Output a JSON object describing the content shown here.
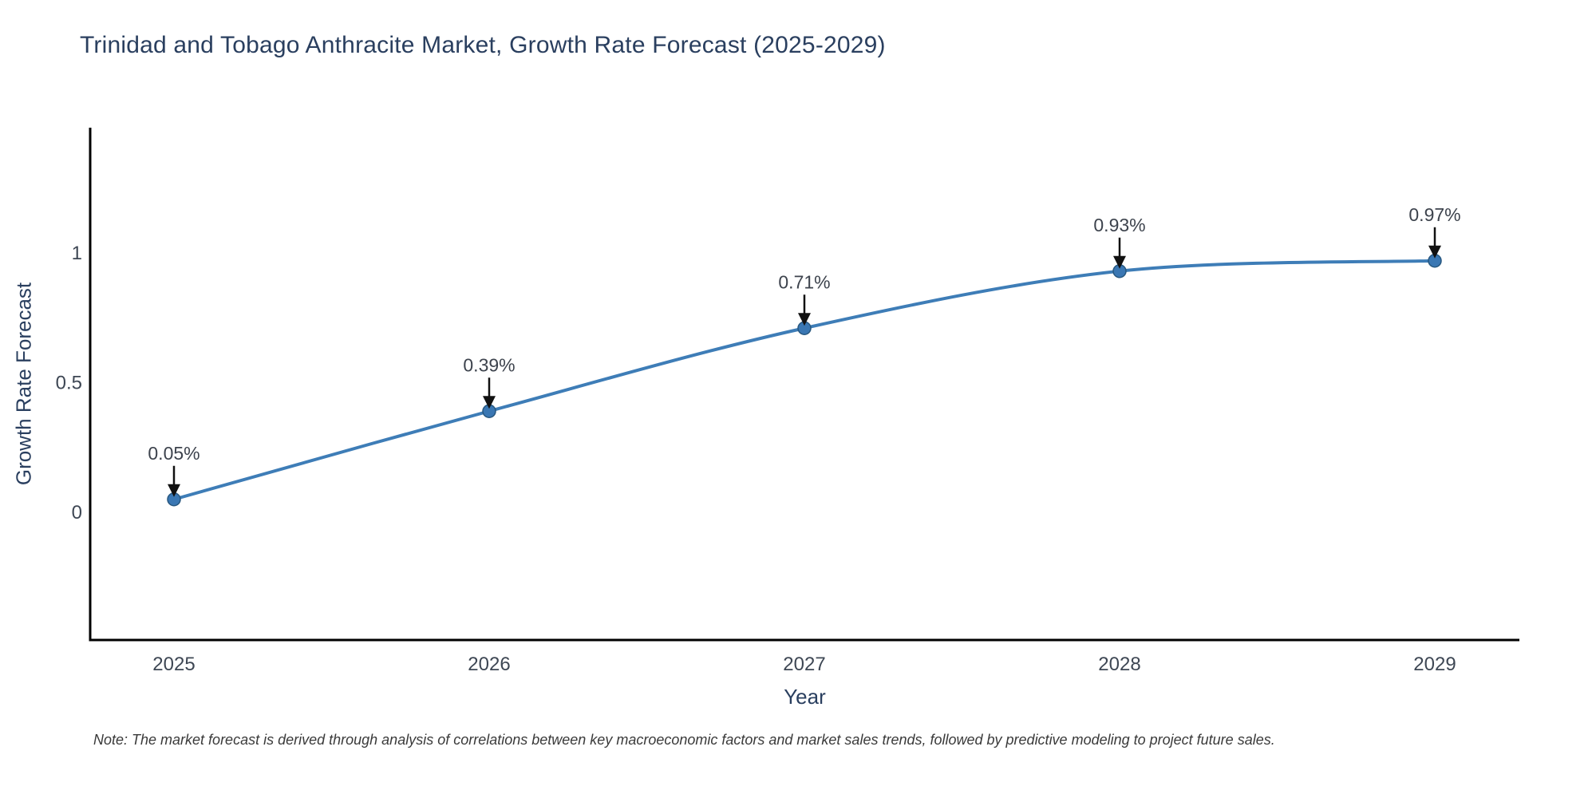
{
  "chart_data": {
    "type": "line",
    "title": "Trinidad and Tobago Anthracite Market, Growth Rate Forecast (2025-2029)",
    "xlabel": "Year",
    "ylabel": "Growth Rate Forecast",
    "categories": [
      "2025",
      "2026",
      "2027",
      "2028",
      "2029"
    ],
    "values": [
      0.05,
      0.39,
      0.71,
      0.93,
      0.97
    ],
    "point_labels": [
      "0.05%",
      "0.39%",
      "0.71%",
      "0.93%",
      "0.97%"
    ],
    "yticks": [
      0,
      0.5,
      1
    ],
    "ytick_labels": [
      "0",
      "0.5",
      "1"
    ],
    "ylim": [
      -0.49,
      1.48
    ],
    "xlim_years": [
      2024.73,
      2029.27
    ],
    "line_shape": "spline",
    "marker": "circle",
    "grid": false,
    "legend_position": "none",
    "annotations_have_arrows": true,
    "colors": {
      "line": "#3e7db7",
      "marker_fill": "#3a77b3",
      "marker_edge": "#27577f",
      "axis_line": "#000000",
      "title_text": "#2a3f5f",
      "tick_text": "#3e4754",
      "annotation_text": "#3d434d",
      "arrow": "#111111",
      "background": "#ffffff"
    },
    "note": "Note: The market forecast is derived through analysis of correlations between key macroeconomic factors and market sales trends, followed by predictive modeling to project future sales."
  }
}
